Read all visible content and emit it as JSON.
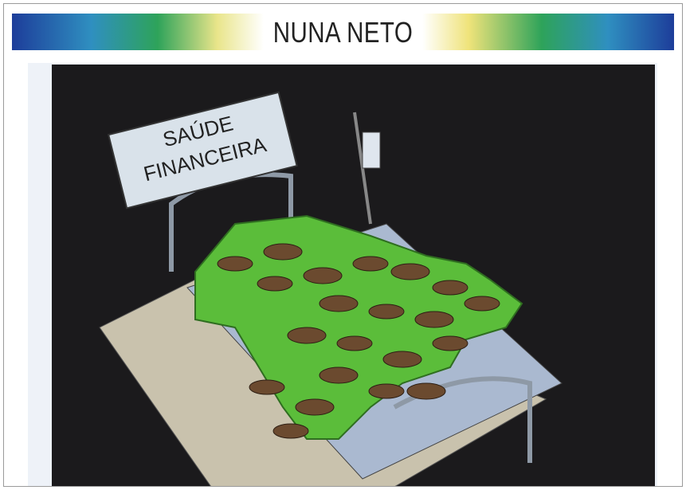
{
  "header": {
    "title": "NUNA NETO"
  },
  "cartoon": {
    "sign_lines": [
      "SAÚDE",
      "FINANCEIRA"
    ]
  }
}
